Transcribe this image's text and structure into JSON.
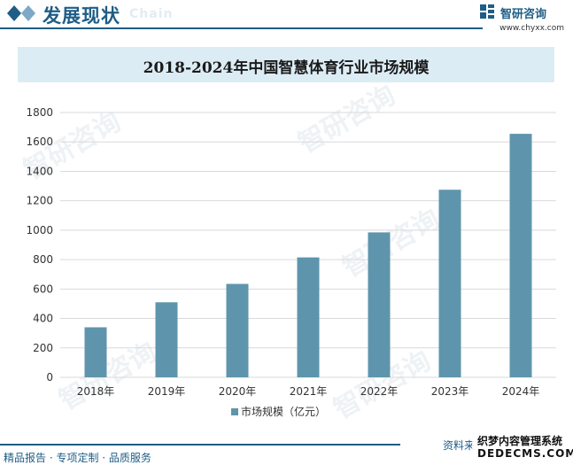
{
  "header": {
    "title": "发展现状",
    "title_en": "Chain",
    "brand": "智研咨询",
    "url": "www.chyxx.com"
  },
  "chart_data": {
    "type": "bar",
    "title": "2018-2024年中国智慧体育行业市场规模",
    "categories": [
      "2018年",
      "2019年",
      "2020年",
      "2021年",
      "2022年",
      "2023年",
      "2024年"
    ],
    "series": [
      {
        "name": "市场规模（亿元）",
        "values": [
          340,
          510,
          635,
          815,
          985,
          1275,
          1655
        ]
      }
    ],
    "ylim": [
      0,
      1800
    ],
    "yticks": [
      "0",
      "200",
      "400",
      "600",
      "800",
      "1000",
      "1200",
      "1400",
      "1600",
      "1800"
    ],
    "grid": true,
    "legend_position": "bottom",
    "bar_color": "#5e95ad"
  },
  "watermark": "智研咨询",
  "footer": {
    "left": "精品报告 · 专项定制 · 品质服务",
    "right": "资料来",
    "stamp_line1": "织梦内容管理系统",
    "stamp_line2": "DEDECMS.COM"
  }
}
